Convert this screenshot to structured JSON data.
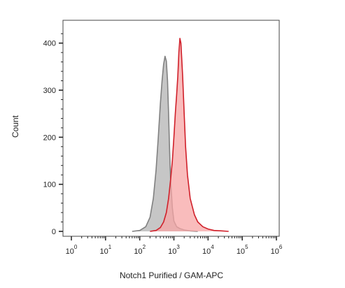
{
  "chart_data": {
    "type": "area",
    "title": "",
    "xlabel": "Notch1 Purified / GAM-APC",
    "ylabel": "Count",
    "x_scale": "log",
    "xlim": [
      1,
      1000000
    ],
    "ylim": [
      0,
      450
    ],
    "yticks": [
      0,
      100,
      200,
      300,
      400
    ],
    "xticks": [
      {
        "base": "10",
        "exp": "0"
      },
      {
        "base": "10",
        "exp": "1"
      },
      {
        "base": "10",
        "exp": "2"
      },
      {
        "base": "10",
        "exp": "3"
      },
      {
        "base": "10",
        "exp": "4"
      },
      {
        "base": "10",
        "exp": "5"
      },
      {
        "base": "10",
        "exp": "6"
      }
    ],
    "legend": "none",
    "grid": false,
    "series": [
      {
        "color": "#808080",
        "fill": "#c3c3c3",
        "x": [
          60,
          100,
          150,
          200,
          250,
          300,
          350,
          400,
          450,
          500,
          550,
          600,
          650,
          700,
          750,
          800,
          900,
          1000,
          1200,
          1500,
          2000,
          3000,
          5000
        ],
        "y": [
          0,
          2,
          10,
          30,
          70,
          130,
          200,
          270,
          320,
          355,
          372,
          362,
          320,
          250,
          170,
          110,
          50,
          22,
          10,
          6,
          3,
          1,
          0
        ]
      },
      {
        "color": "#d0202a",
        "fill": "#f7a5a5",
        "x": [
          200,
          300,
          400,
          500,
          600,
          700,
          800,
          900,
          1000,
          1100,
          1200,
          1300,
          1400,
          1500,
          1600,
          1800,
          2000,
          2200,
          2500,
          3000,
          4000,
          5000,
          7000,
          10000,
          15000,
          25000,
          40000
        ],
        "y": [
          0,
          2,
          8,
          20,
          40,
          70,
          110,
          150,
          200,
          250,
          290,
          330,
          380,
          410,
          400,
          330,
          250,
          180,
          120,
          70,
          35,
          20,
          10,
          5,
          2,
          1,
          0
        ]
      }
    ]
  }
}
